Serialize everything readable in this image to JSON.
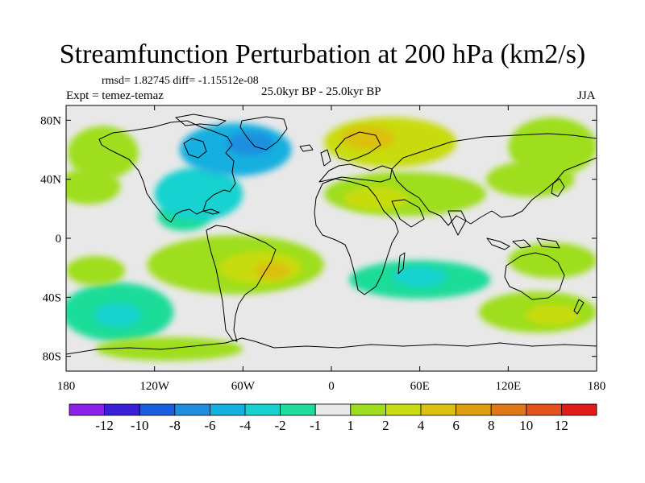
{
  "title": "Streamfunction Perturbation at 200 hPa (km2/s)",
  "stats": {
    "rmsd": "rmsd= 1.82745 diff= -1.15512e-08"
  },
  "experiment": "Expt = temez-temaz",
  "period": "25.0kyr BP - 25.0kyr BP",
  "season": "JJA",
  "axes": {
    "x_ticks": [
      {
        "value": -180,
        "label": "180"
      },
      {
        "value": -120,
        "label": "120W"
      },
      {
        "value": -60,
        "label": "60W"
      },
      {
        "value": 0,
        "label": "0"
      },
      {
        "value": 60,
        "label": "60E"
      },
      {
        "value": 120,
        "label": "120E"
      },
      {
        "value": 180,
        "label": "180"
      }
    ],
    "y_ticks": [
      {
        "value": 80,
        "label": "80N"
      },
      {
        "value": 40,
        "label": "40N"
      },
      {
        "value": 0,
        "label": "0"
      },
      {
        "value": -40,
        "label": "40S"
      },
      {
        "value": -80,
        "label": "80S"
      }
    ],
    "lon_range": [
      -180,
      180
    ],
    "lat_range": [
      -90,
      90
    ]
  },
  "colorbar": {
    "colors": [
      "#8c20ea",
      "#3a1fd8",
      "#1a5ce0",
      "#1e8fe0",
      "#14b0e0",
      "#18d2d0",
      "#1edc9a",
      "#e8e8e8",
      "#9ede1e",
      "#c8dc10",
      "#dcc010",
      "#dca010",
      "#e07818",
      "#e4501e",
      "#e21a1a"
    ],
    "labels": [
      "-12",
      "-10",
      "-8",
      "-6",
      "-4",
      "-2",
      "-1",
      "1",
      "2",
      "4",
      "6",
      "8",
      "10",
      "12"
    ]
  },
  "field": {
    "background_color": "#e8e8e8",
    "anomalies": [
      {
        "name": "n-atlantic-low",
        "lon": -65,
        "lat": 60,
        "rx": 38,
        "ry": 18,
        "level": -6
      },
      {
        "name": "n-atlantic-low-core",
        "lon": -55,
        "lat": 64,
        "rx": 16,
        "ry": 8,
        "level": -8
      },
      {
        "name": "eurasia-high",
        "lon": 40,
        "lat": 65,
        "rx": 45,
        "ry": 17,
        "level": 4
      },
      {
        "name": "scandinavia-high-core",
        "lon": 25,
        "lat": 68,
        "rx": 18,
        "ry": 8,
        "level": 6
      },
      {
        "name": "barents-low",
        "lon": 82,
        "lat": 55,
        "rx": 22,
        "ry": 12,
        "level": -1
      },
      {
        "name": "far-east-high",
        "lon": 150,
        "lat": 62,
        "rx": 30,
        "ry": 20,
        "level": 2
      },
      {
        "name": "n-pacific-high",
        "lon": -155,
        "lat": 58,
        "rx": 24,
        "ry": 18,
        "level": 2
      },
      {
        "name": "ne-pacific-low",
        "lon": -115,
        "lat": 72,
        "rx": 28,
        "ry": 10,
        "level": -1
      },
      {
        "name": "n-america-low",
        "lon": -90,
        "lat": 30,
        "rx": 30,
        "ry": 18,
        "level": -4
      },
      {
        "name": "mexico-low",
        "lon": -100,
        "lat": 15,
        "rx": 18,
        "ry": 10,
        "level": -2
      },
      {
        "name": "w-pacific-north-high",
        "lon": -165,
        "lat": 35,
        "rx": 22,
        "ry": 12,
        "level": 2
      },
      {
        "name": "asia-high",
        "lon": 50,
        "lat": 30,
        "rx": 55,
        "ry": 15,
        "level": 2
      },
      {
        "name": "arabia-high-core",
        "lon": 30,
        "lat": 27,
        "rx": 22,
        "ry": 8,
        "level": 4
      },
      {
        "name": "e-asia-high",
        "lon": 135,
        "lat": 40,
        "rx": 30,
        "ry": 12,
        "level": 2
      },
      {
        "name": "s-america-high",
        "lon": -65,
        "lat": -18,
        "rx": 60,
        "ry": 20,
        "level": 2
      },
      {
        "name": "s-america-high-core",
        "lon": -48,
        "lat": -20,
        "rx": 28,
        "ry": 11,
        "level": 4
      },
      {
        "name": "s-atlantic-high-core",
        "lon": -40,
        "lat": -22,
        "rx": 12,
        "ry": 6,
        "level": 6
      },
      {
        "name": "indian-ocean-low",
        "lon": 60,
        "lat": -28,
        "rx": 48,
        "ry": 13,
        "level": -2
      },
      {
        "name": "indian-ocean-low-core",
        "lon": 60,
        "lat": -26,
        "rx": 18,
        "ry": 7,
        "level": -4
      },
      {
        "name": "australia-high",
        "lon": 150,
        "lat": -15,
        "rx": 30,
        "ry": 12,
        "level": 2
      },
      {
        "name": "se-pacific-low",
        "lon": -145,
        "lat": -50,
        "rx": 38,
        "ry": 20,
        "level": -2
      },
      {
        "name": "s-pacific-low-core",
        "lon": -145,
        "lat": -52,
        "rx": 16,
        "ry": 8,
        "level": -4
      },
      {
        "name": "s-indian-high",
        "lon": 140,
        "lat": -50,
        "rx": 40,
        "ry": 14,
        "level": 2
      },
      {
        "name": "s-indian-high-core",
        "lon": 150,
        "lat": -52,
        "rx": 18,
        "ry": 7,
        "level": 4
      },
      {
        "name": "antarctic-coast-high",
        "lon": -110,
        "lat": -75,
        "rx": 50,
        "ry": 8,
        "level": 2
      },
      {
        "name": "w-pacific-south-high",
        "lon": -160,
        "lat": -22,
        "rx": 20,
        "ry": 10,
        "level": 2
      }
    ]
  }
}
